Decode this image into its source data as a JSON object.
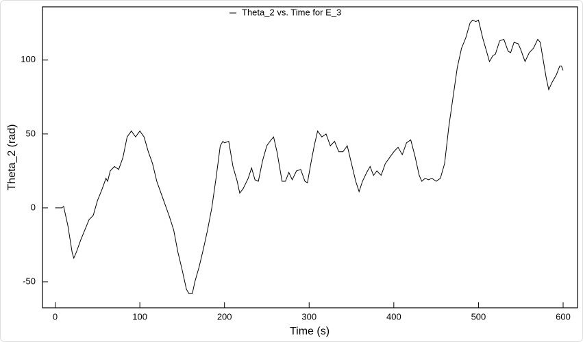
{
  "chart_data": {
    "type": "line",
    "xlabel": "Time (s)",
    "ylabel": "Theta_2 (rad)",
    "xlim": [
      -15,
      617
    ],
    "ylim": [
      -67.6,
      136
    ],
    "xticks": [
      0,
      100,
      200,
      300,
      400,
      500,
      600
    ],
    "yticks": [
      -50,
      0,
      50,
      100
    ],
    "legend_position": "top",
    "legend_text_color": "#8b1a1a",
    "series": [
      {
        "name": "Theta_2 vs. Time for E_3",
        "color": "#000000",
        "x": [
          0,
          8,
          10,
          15,
          20,
          22,
          25,
          30,
          35,
          40,
          45,
          50,
          55,
          60,
          62,
          65,
          70,
          75,
          80,
          85,
          90,
          95,
          100,
          105,
          110,
          115,
          120,
          125,
          130,
          135,
          140,
          145,
          150,
          155,
          158,
          162,
          165,
          170,
          175,
          180,
          185,
          190,
          195,
          198,
          200,
          205,
          210,
          215,
          218,
          222,
          228,
          232,
          236,
          240,
          245,
          250,
          255,
          258,
          262,
          265,
          268,
          272,
          276,
          280,
          285,
          290,
          295,
          298,
          302,
          306,
          310,
          315,
          320,
          325,
          330,
          335,
          340,
          345,
          350,
          355,
          359,
          363,
          368,
          372,
          376,
          380,
          385,
          390,
          395,
          400,
          405,
          410,
          415,
          420,
          425,
          430,
          433,
          437,
          441,
          445,
          450,
          455,
          460,
          465,
          470,
          475,
          480,
          485,
          490,
          493,
          497,
          500,
          505,
          510,
          513,
          517,
          520,
          525,
          530,
          535,
          538,
          542,
          547,
          550,
          555,
          560,
          565,
          570,
          573,
          575,
          580,
          583,
          587,
          592,
          596,
          598,
          600
        ],
        "values": [
          0,
          0,
          1,
          -12,
          -30,
          -34,
          -30,
          -22,
          -15,
          -8,
          -5,
          5,
          12,
          20,
          18,
          25,
          28,
          26,
          34,
          48,
          52,
          48,
          52,
          48,
          38,
          30,
          18,
          10,
          2,
          -6,
          -15,
          -30,
          -42,
          -55,
          -58,
          -58,
          -50,
          -40,
          -28,
          -15,
          0,
          20,
          42,
          45,
          44,
          45,
          28,
          18,
          10,
          13,
          20,
          27,
          19,
          18,
          32,
          42,
          46,
          48,
          38,
          28,
          18,
          18,
          24,
          19,
          25,
          26,
          18,
          17,
          30,
          42,
          52,
          48,
          50,
          42,
          45,
          38,
          38,
          42,
          30,
          18,
          11,
          18,
          24,
          28,
          22,
          25,
          22,
          30,
          34,
          38,
          41,
          36,
          44,
          46,
          35,
          22,
          18,
          20,
          19,
          20,
          18,
          20,
          30,
          55,
          75,
          95,
          108,
          115,
          125,
          127,
          126,
          127,
          115,
          105,
          99,
          103,
          104,
          113,
          114,
          106,
          105,
          112,
          111,
          107,
          99,
          105,
          108,
          114,
          112,
          105,
          88,
          80,
          85,
          90,
          96,
          96,
          93
        ]
      }
    ]
  }
}
